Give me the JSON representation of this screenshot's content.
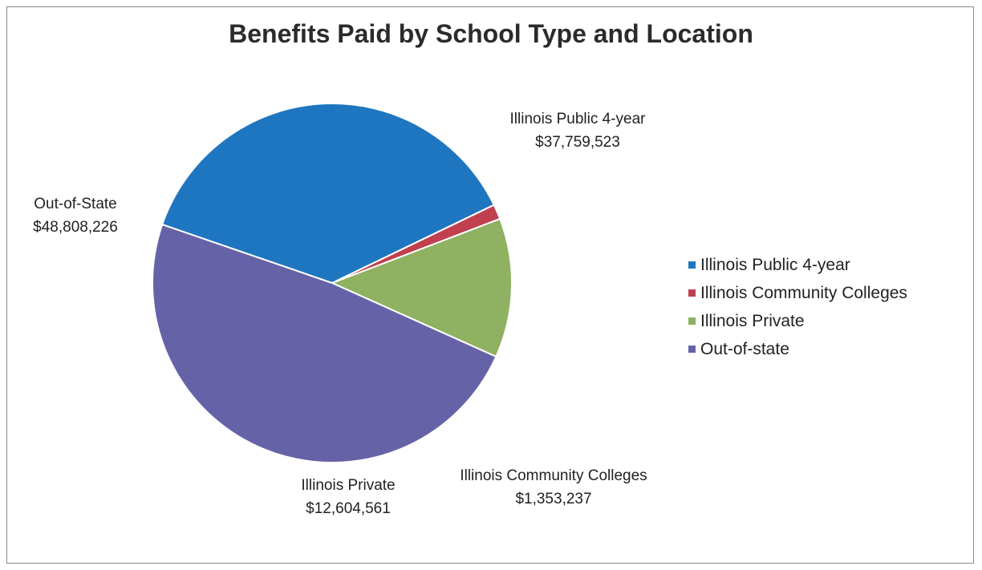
{
  "chart_data": {
    "type": "pie",
    "title": "Benefits Paid by School Type and Location",
    "slices": [
      {
        "legend": "Illinois Public 4-year",
        "label": "Illinois Public 4-year",
        "value_text": "$37,759,523",
        "value": 37759523,
        "color": "#1f76c0"
      },
      {
        "legend": "Illinois Community Colleges",
        "label": "Illinois Community Colleges",
        "value_text": "$1,353,237",
        "value": 1353237,
        "color": "#c0404f"
      },
      {
        "legend": "Illinois Private",
        "label": "Illinois Private",
        "value_text": "$12,604,561",
        "value": 12604561,
        "color": "#8fb162"
      },
      {
        "legend": "Out-of-state",
        "label": "Out-of-State",
        "value_text": "$48,808,226",
        "value": 48808226,
        "color": "#6662a8"
      }
    ],
    "legend_position": "right"
  }
}
